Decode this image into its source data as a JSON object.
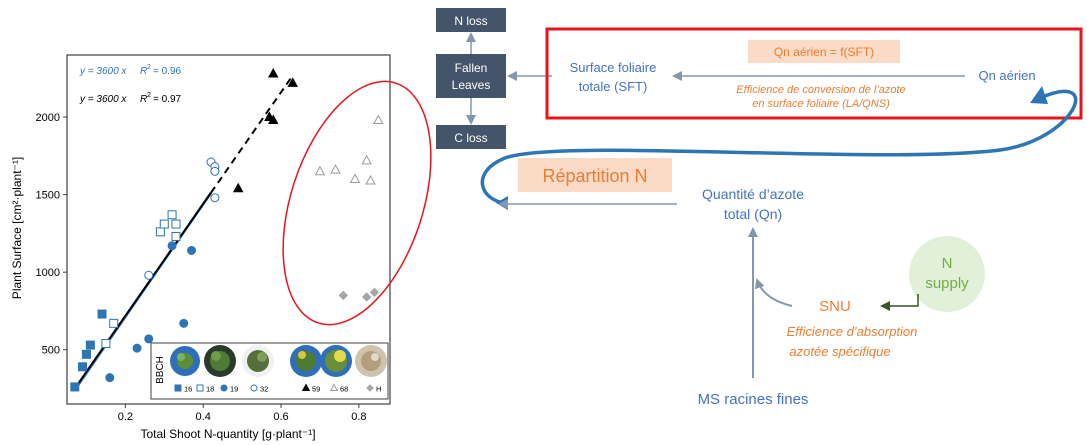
{
  "chart_data": {
    "type": "scatter",
    "xlabel": "Total Shoot N-quantity [g·plant⁻¹]",
    "ylabel": "Plant Surface [cm²·plant⁻¹]",
    "xlim": [
      0.05,
      0.88
    ],
    "ylim": [
      150,
      2400
    ],
    "xticks": [
      0.2,
      0.4,
      0.6,
      0.8
    ],
    "xtick_labels": [
      "0.2",
      "0.4",
      "0.6",
      "0.8"
    ],
    "yticks": [
      500,
      1000,
      1500,
      2000
    ],
    "ytick_labels": [
      "500",
      "1000",
      "1500",
      "2000"
    ],
    "grid": false,
    "annotations": {
      "blue_eq": "y = 3600 x",
      "blue_r2_label": "R",
      "blue_r2_value": "= 0.96",
      "black_eq": "y = 3600 x",
      "black_r2_label": "R",
      "black_r2_value": "= 0.97"
    },
    "fits": [
      {
        "color": "#2E75B6",
        "style": "solid",
        "x": [
          0.07,
          0.42
        ],
        "y": [
          240,
          1512
        ]
      },
      {
        "color": "#000000",
        "style": "solid",
        "x": [
          0.07,
          0.42
        ],
        "y": [
          250,
          1512
        ]
      },
      {
        "color": "#000000",
        "style": "dashed",
        "x": [
          0.42,
          0.63
        ],
        "y": [
          1512,
          2268
        ]
      }
    ],
    "series": [
      {
        "name": "16",
        "marker": "square",
        "filled": true,
        "color": "#2E75B6",
        "x": [
          0.07,
          0.09,
          0.1,
          0.11,
          0.14
        ],
        "y": [
          260,
          390,
          470,
          530,
          730
        ]
      },
      {
        "name": "18",
        "marker": "square",
        "filled": false,
        "color": "#2E75B6",
        "x": [
          0.15,
          0.17,
          0.29,
          0.3,
          0.32,
          0.33,
          0.33
        ],
        "y": [
          540,
          670,
          1260,
          1310,
          1370,
          1310,
          1230
        ]
      },
      {
        "name": "19",
        "marker": "circle",
        "filled": true,
        "color": "#2E75B6",
        "x": [
          0.16,
          0.23,
          0.26,
          0.32,
          0.37,
          0.35
        ],
        "y": [
          320,
          510,
          570,
          1170,
          1140,
          670
        ]
      },
      {
        "name": "32",
        "marker": "circle",
        "filled": false,
        "color": "#2E75B6",
        "x": [
          0.26,
          0.42,
          0.43,
          0.43,
          0.43
        ],
        "y": [
          980,
          1710,
          1680,
          1650,
          1480
        ]
      },
      {
        "name": "59",
        "marker": "triangle",
        "filled": true,
        "color": "#000000",
        "x": [
          0.49,
          0.57,
          0.58,
          0.58,
          0.63
        ],
        "y": [
          1540,
          2000,
          1980,
          2280,
          2220
        ]
      },
      {
        "name": "68",
        "marker": "triangle",
        "filled": false,
        "color": "#9a9a9a",
        "x": [
          0.7,
          0.74,
          0.79,
          0.82,
          0.83,
          0.85
        ],
        "y": [
          1650,
          1660,
          1600,
          1720,
          1590,
          1980
        ]
      },
      {
        "name": "H",
        "marker": "diamond",
        "filled": true,
        "color": "#a6a6a6",
        "x": [
          0.76,
          0.82,
          0.84
        ],
        "y": [
          850,
          840,
          870
        ]
      }
    ],
    "legend": {
      "title": "BBCH",
      "placement": "bottom-right",
      "entries": [
        "16",
        "18",
        "19",
        "32",
        "59",
        "68",
        "H"
      ]
    }
  },
  "diagram": {
    "n_loss": "N loss",
    "fallen_leaves": [
      "Fallen",
      "Leaves"
    ],
    "c_loss": "C loss",
    "formula": "Qn aérien = f(SFT)",
    "surface_foliaire": [
      "Surface foliaire",
      "totale (SFT)"
    ],
    "qn_aerien": "Qn aérien",
    "efficience_conversion": [
      "Efficience de conversion de l’azote",
      "en surface foliaire (LA/QNS)"
    ],
    "repartition": "Répartition N",
    "quantite_azote": [
      "Quantité d’azote",
      "total (Qn)"
    ],
    "n_supply": [
      "N",
      "supply"
    ],
    "snu": "SNU",
    "efficience_absorption": [
      "Efficience d’absorption",
      "azotée spécifique"
    ],
    "ms_racines": "MS racines fines"
  },
  "colors": {
    "blue": "#2E75B6",
    "blue_text": "#4472C4",
    "orange": "#ED7D31",
    "red_frame": "#E8141B",
    "dark_box": "#44546A",
    "salmon_fill": "#FBDBC5",
    "green_fill": "#E2F0D9",
    "green_text": "#70AD47",
    "arrow_gray": "#8497B0"
  }
}
